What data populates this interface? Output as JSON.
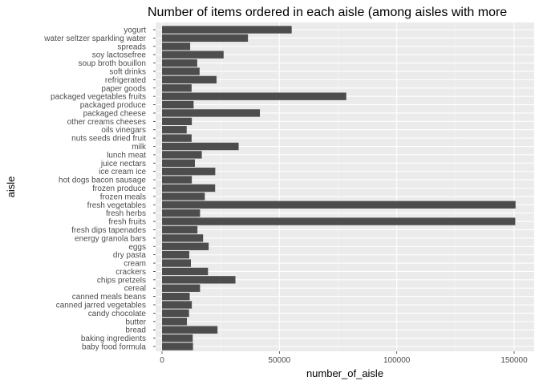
{
  "chart_data": {
    "type": "bar",
    "orientation": "horizontal",
    "title": "Number of items ordered in each aisle (among aisles with more",
    "xlabel": "number_of_aisle",
    "ylabel": "aisle",
    "xlim": [
      0,
      155000
    ],
    "x_ticks": [
      0,
      50000,
      100000,
      150000
    ],
    "x_tick_labels": [
      "0",
      "50000",
      "100000",
      "150000"
    ],
    "grid": true,
    "colors": {
      "panel": "#ebebeb",
      "grid_major": "#ffffff",
      "grid_minor": "#f5f5f5",
      "bar": "#4d4d4d"
    },
    "categories": [
      "yogurt",
      "water seltzer sparkling water",
      "spreads",
      "soy lactosefree",
      "soup broth bouillon",
      "soft drinks",
      "refrigerated",
      "paper goods",
      "packaged vegetables fruits",
      "packaged produce",
      "packaged cheese",
      "other creams cheeses",
      "oils vinegars",
      "nuts seeds dried fruit",
      "milk",
      "lunch meat",
      "juice nectars",
      "ice cream ice",
      "hot dogs bacon sausage",
      "frozen produce",
      "frozen meals",
      "fresh vegetables",
      "fresh herbs",
      "fresh fruits",
      "fresh dips tapenades",
      "energy granola bars",
      "eggs",
      "dry pasta",
      "cream",
      "crackers",
      "chips pretzels",
      "cereal",
      "canned meals beans",
      "canned jarred vegetables",
      "candy chocolate",
      "butter",
      "bread",
      "baking ingredients",
      "baby food formula"
    ],
    "values": [
      55240,
      36617,
      11990,
      26240,
      15000,
      16000,
      23228,
      12600,
      78493,
      13460,
      41699,
      12700,
      10500,
      12600,
      32644,
      16957,
      14000,
      22676,
      12700,
      22627,
      18221,
      150609,
      16200,
      150473,
      15100,
      17500,
      19875,
      11600,
      12300,
      19592,
      31269,
      16200,
      11800,
      12700,
      11500,
      10600,
      23635,
      13088,
      13198
    ]
  }
}
